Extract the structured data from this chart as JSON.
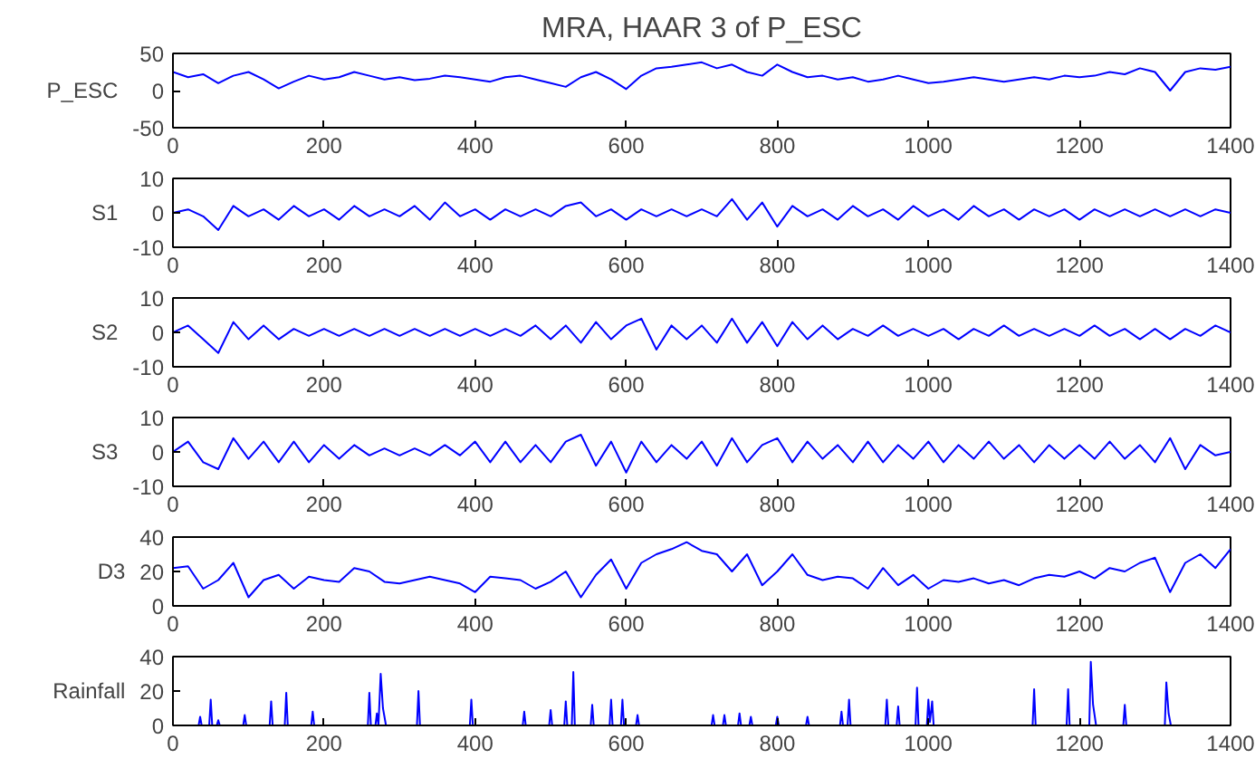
{
  "chart_data": [
    {
      "type": "line",
      "title": "MRA, HAAR 3 of P_ESC",
      "ylabel": "P_ESC",
      "xlim": [
        0,
        1400
      ],
      "ylim": [
        -50,
        50
      ],
      "xticks": [
        0,
        200,
        400,
        600,
        800,
        1000,
        1200,
        1400
      ],
      "yticks": [
        -50,
        0,
        50
      ],
      "grid": false,
      "x": [
        0,
        20,
        40,
        60,
        80,
        100,
        120,
        140,
        160,
        180,
        200,
        220,
        240,
        260,
        280,
        300,
        320,
        340,
        360,
        380,
        400,
        420,
        440,
        460,
        480,
        500,
        520,
        540,
        560,
        580,
        600,
        620,
        640,
        660,
        680,
        700,
        720,
        740,
        760,
        780,
        800,
        820,
        840,
        860,
        880,
        900,
        920,
        940,
        960,
        980,
        1000,
        1020,
        1040,
        1060,
        1080,
        1100,
        1120,
        1140,
        1160,
        1180,
        1200,
        1220,
        1240,
        1260,
        1280,
        1300,
        1320,
        1340,
        1360,
        1380,
        1400
      ],
      "series": [
        {
          "color": "#0000ff",
          "values": [
            25,
            18,
            22,
            10,
            20,
            25,
            15,
            3,
            12,
            20,
            15,
            18,
            25,
            20,
            15,
            18,
            14,
            16,
            20,
            18,
            15,
            12,
            18,
            20,
            15,
            10,
            5,
            18,
            25,
            15,
            2,
            20,
            30,
            32,
            35,
            38,
            30,
            35,
            25,
            20,
            35,
            25,
            18,
            20,
            15,
            18,
            12,
            15,
            20,
            15,
            10,
            12,
            15,
            18,
            15,
            12,
            15,
            18,
            15,
            20,
            18,
            20,
            25,
            22,
            30,
            25,
            0,
            25,
            30,
            28,
            32
          ]
        }
      ]
    },
    {
      "type": "line",
      "ylabel": "S1",
      "xlim": [
        0,
        1400
      ],
      "ylim": [
        -10,
        10
      ],
      "xticks": [
        0,
        200,
        400,
        600,
        800,
        1000,
        1200,
        1400
      ],
      "yticks": [
        -10,
        0,
        10
      ],
      "grid": false,
      "x": [
        0,
        20,
        40,
        60,
        80,
        100,
        120,
        140,
        160,
        180,
        200,
        220,
        240,
        260,
        280,
        300,
        320,
        340,
        360,
        380,
        400,
        420,
        440,
        460,
        480,
        500,
        520,
        540,
        560,
        580,
        600,
        620,
        640,
        660,
        680,
        700,
        720,
        740,
        760,
        780,
        800,
        820,
        840,
        860,
        880,
        900,
        920,
        940,
        960,
        980,
        1000,
        1020,
        1040,
        1060,
        1080,
        1100,
        1120,
        1140,
        1160,
        1180,
        1200,
        1220,
        1240,
        1260,
        1280,
        1300,
        1320,
        1340,
        1360,
        1380,
        1400
      ],
      "series": [
        {
          "color": "#0000ff",
          "values": [
            0,
            1,
            -1,
            -5,
            2,
            -1,
            1,
            -2,
            2,
            -1,
            1,
            -2,
            2,
            -1,
            1,
            -1,
            2,
            -2,
            3,
            -1,
            1,
            -2,
            1,
            -1,
            1,
            -1,
            2,
            3,
            -1,
            1,
            -2,
            1,
            -1,
            1,
            -1,
            1,
            -1,
            4,
            -2,
            3,
            -4,
            2,
            -1,
            1,
            -2,
            2,
            -1,
            1,
            -2,
            2,
            -1,
            1,
            -2,
            2,
            -1,
            1,
            -2,
            1,
            -1,
            1,
            -2,
            1,
            -1,
            1,
            -1,
            1,
            -1,
            1,
            -1,
            1,
            0
          ]
        }
      ]
    },
    {
      "type": "line",
      "ylabel": "S2",
      "xlim": [
        0,
        1400
      ],
      "ylim": [
        -10,
        10
      ],
      "xticks": [
        0,
        200,
        400,
        600,
        800,
        1000,
        1200,
        1400
      ],
      "yticks": [
        -10,
        0,
        10
      ],
      "grid": false,
      "x": [
        0,
        20,
        40,
        60,
        80,
        100,
        120,
        140,
        160,
        180,
        200,
        220,
        240,
        260,
        280,
        300,
        320,
        340,
        360,
        380,
        400,
        420,
        440,
        460,
        480,
        500,
        520,
        540,
        560,
        580,
        600,
        620,
        640,
        660,
        680,
        700,
        720,
        740,
        760,
        780,
        800,
        820,
        840,
        860,
        880,
        900,
        920,
        940,
        960,
        980,
        1000,
        1020,
        1040,
        1060,
        1080,
        1100,
        1120,
        1140,
        1160,
        1180,
        1200,
        1220,
        1240,
        1260,
        1280,
        1300,
        1320,
        1340,
        1360,
        1380,
        1400
      ],
      "series": [
        {
          "color": "#0000ff",
          "values": [
            0,
            2,
            -2,
            -6,
            3,
            -2,
            2,
            -2,
            1,
            -1,
            1,
            -1,
            1,
            -1,
            1,
            -1,
            1,
            -1,
            1,
            -1,
            1,
            -1,
            1,
            -1,
            2,
            -2,
            2,
            -3,
            3,
            -2,
            2,
            4,
            -5,
            2,
            -2,
            2,
            -3,
            4,
            -3,
            3,
            -4,
            3,
            -2,
            2,
            -2,
            1,
            -1,
            2,
            -1,
            1,
            -1,
            1,
            -2,
            1,
            -1,
            2,
            -1,
            1,
            -1,
            1,
            -1,
            2,
            -1,
            1,
            -2,
            1,
            -2,
            1,
            -1,
            2,
            0
          ]
        }
      ]
    },
    {
      "type": "line",
      "ylabel": "S3",
      "xlim": [
        0,
        1400
      ],
      "ylim": [
        -10,
        10
      ],
      "xticks": [
        0,
        200,
        400,
        600,
        800,
        1000,
        1200,
        1400
      ],
      "yticks": [
        -10,
        0,
        10
      ],
      "grid": false,
      "x": [
        0,
        20,
        40,
        60,
        80,
        100,
        120,
        140,
        160,
        180,
        200,
        220,
        240,
        260,
        280,
        300,
        320,
        340,
        360,
        380,
        400,
        420,
        440,
        460,
        480,
        500,
        520,
        540,
        560,
        580,
        600,
        620,
        640,
        660,
        680,
        700,
        720,
        740,
        760,
        780,
        800,
        820,
        840,
        860,
        880,
        900,
        920,
        940,
        960,
        980,
        1000,
        1020,
        1040,
        1060,
        1080,
        1100,
        1120,
        1140,
        1160,
        1180,
        1200,
        1220,
        1240,
        1260,
        1280,
        1300,
        1320,
        1340,
        1360,
        1380,
        1400
      ],
      "series": [
        {
          "color": "#0000ff",
          "values": [
            0,
            3,
            -3,
            -5,
            4,
            -2,
            3,
            -3,
            3,
            -3,
            2,
            -2,
            2,
            -1,
            1,
            -1,
            1,
            -1,
            2,
            -1,
            3,
            -3,
            3,
            -3,
            2,
            -3,
            3,
            5,
            -4,
            3,
            -6,
            3,
            -3,
            2,
            -2,
            3,
            -4,
            4,
            -3,
            2,
            4,
            -3,
            3,
            -2,
            2,
            -3,
            3,
            -3,
            2,
            -2,
            3,
            -3,
            2,
            -2,
            3,
            -2,
            2,
            -3,
            2,
            -2,
            2,
            -2,
            3,
            -2,
            2,
            -3,
            4,
            -5,
            2,
            -1,
            0
          ]
        }
      ]
    },
    {
      "type": "line",
      "ylabel": "D3",
      "xlim": [
        0,
        1400
      ],
      "ylim": [
        0,
        40
      ],
      "xticks": [
        0,
        200,
        400,
        600,
        800,
        1000,
        1200,
        1400
      ],
      "yticks": [
        0,
        20,
        40
      ],
      "grid": false,
      "x": [
        0,
        20,
        40,
        60,
        80,
        100,
        120,
        140,
        160,
        180,
        200,
        220,
        240,
        260,
        280,
        300,
        320,
        340,
        360,
        380,
        400,
        420,
        440,
        460,
        480,
        500,
        520,
        540,
        560,
        580,
        600,
        620,
        640,
        660,
        680,
        700,
        720,
        740,
        760,
        780,
        800,
        820,
        840,
        860,
        880,
        900,
        920,
        940,
        960,
        980,
        1000,
        1020,
        1040,
        1060,
        1080,
        1100,
        1120,
        1140,
        1160,
        1180,
        1200,
        1220,
        1240,
        1260,
        1280,
        1300,
        1320,
        1340,
        1360,
        1380,
        1400
      ],
      "series": [
        {
          "color": "#0000ff",
          "values": [
            22,
            23,
            10,
            15,
            25,
            5,
            15,
            18,
            10,
            17,
            15,
            14,
            22,
            20,
            14,
            13,
            15,
            17,
            15,
            13,
            8,
            17,
            16,
            15,
            10,
            14,
            20,
            5,
            18,
            27,
            10,
            25,
            30,
            33,
            37,
            32,
            30,
            20,
            30,
            12,
            20,
            30,
            18,
            15,
            17,
            16,
            10,
            22,
            12,
            18,
            10,
            15,
            14,
            16,
            13,
            15,
            12,
            16,
            18,
            17,
            20,
            16,
            22,
            20,
            25,
            28,
            8,
            25,
            30,
            22,
            33
          ]
        }
      ]
    },
    {
      "type": "line",
      "ylabel": "Rainfall",
      "xlim": [
        0,
        1400
      ],
      "ylim": [
        0,
        40
      ],
      "xticks": [
        0,
        200,
        400,
        600,
        800,
        1000,
        1200,
        1400
      ],
      "yticks": [
        0,
        20,
        40
      ],
      "grid": false,
      "x": [
        0,
        34,
        36,
        38,
        48,
        50,
        52,
        58,
        60,
        62,
        93,
        95,
        97,
        128,
        130,
        132,
        148,
        150,
        152,
        183,
        185,
        187,
        258,
        260,
        262,
        268,
        270,
        272,
        275,
        278,
        282,
        323,
        325,
        327,
        393,
        395,
        397,
        463,
        465,
        467,
        498,
        500,
        502,
        518,
        520,
        522,
        528,
        530,
        532,
        553,
        555,
        557,
        578,
        580,
        582,
        593,
        595,
        597,
        613,
        615,
        617,
        713,
        715,
        717,
        728,
        730,
        732,
        748,
        750,
        752,
        763,
        765,
        767,
        798,
        800,
        802,
        838,
        840,
        842,
        883,
        885,
        887,
        893,
        895,
        897,
        943,
        945,
        947,
        958,
        960,
        962,
        983,
        985,
        987,
        998,
        1000,
        1002,
        1005,
        1007,
        1138,
        1140,
        1142,
        1183,
        1185,
        1187,
        1213,
        1215,
        1218,
        1222,
        1258,
        1260,
        1262,
        1313,
        1315,
        1318,
        1321,
        1400
      ],
      "series": [
        {
          "color": "#0000ff",
          "values": [
            0,
            0,
            5,
            0,
            0,
            15,
            0,
            0,
            3,
            0,
            0,
            6,
            0,
            0,
            14,
            0,
            0,
            19,
            0,
            0,
            8,
            0,
            0,
            19,
            0,
            0,
            7,
            0,
            30,
            10,
            0,
            0,
            20,
            0,
            0,
            15,
            0,
            0,
            8,
            0,
            0,
            9,
            0,
            0,
            14,
            0,
            0,
            31,
            0,
            0,
            12,
            0,
            0,
            15,
            0,
            0,
            15,
            0,
            0,
            6,
            0,
            0,
            6,
            0,
            0,
            6,
            0,
            0,
            7,
            0,
            0,
            5,
            0,
            0,
            5,
            0,
            0,
            5,
            0,
            0,
            8,
            0,
            0,
            15,
            0,
            0,
            15,
            0,
            0,
            11,
            0,
            0,
            22,
            0,
            0,
            15,
            2,
            14,
            0,
            0,
            21,
            0,
            0,
            21,
            0,
            0,
            37,
            12,
            0,
            0,
            12,
            0,
            0,
            25,
            7,
            0,
            0
          ]
        }
      ]
    }
  ]
}
